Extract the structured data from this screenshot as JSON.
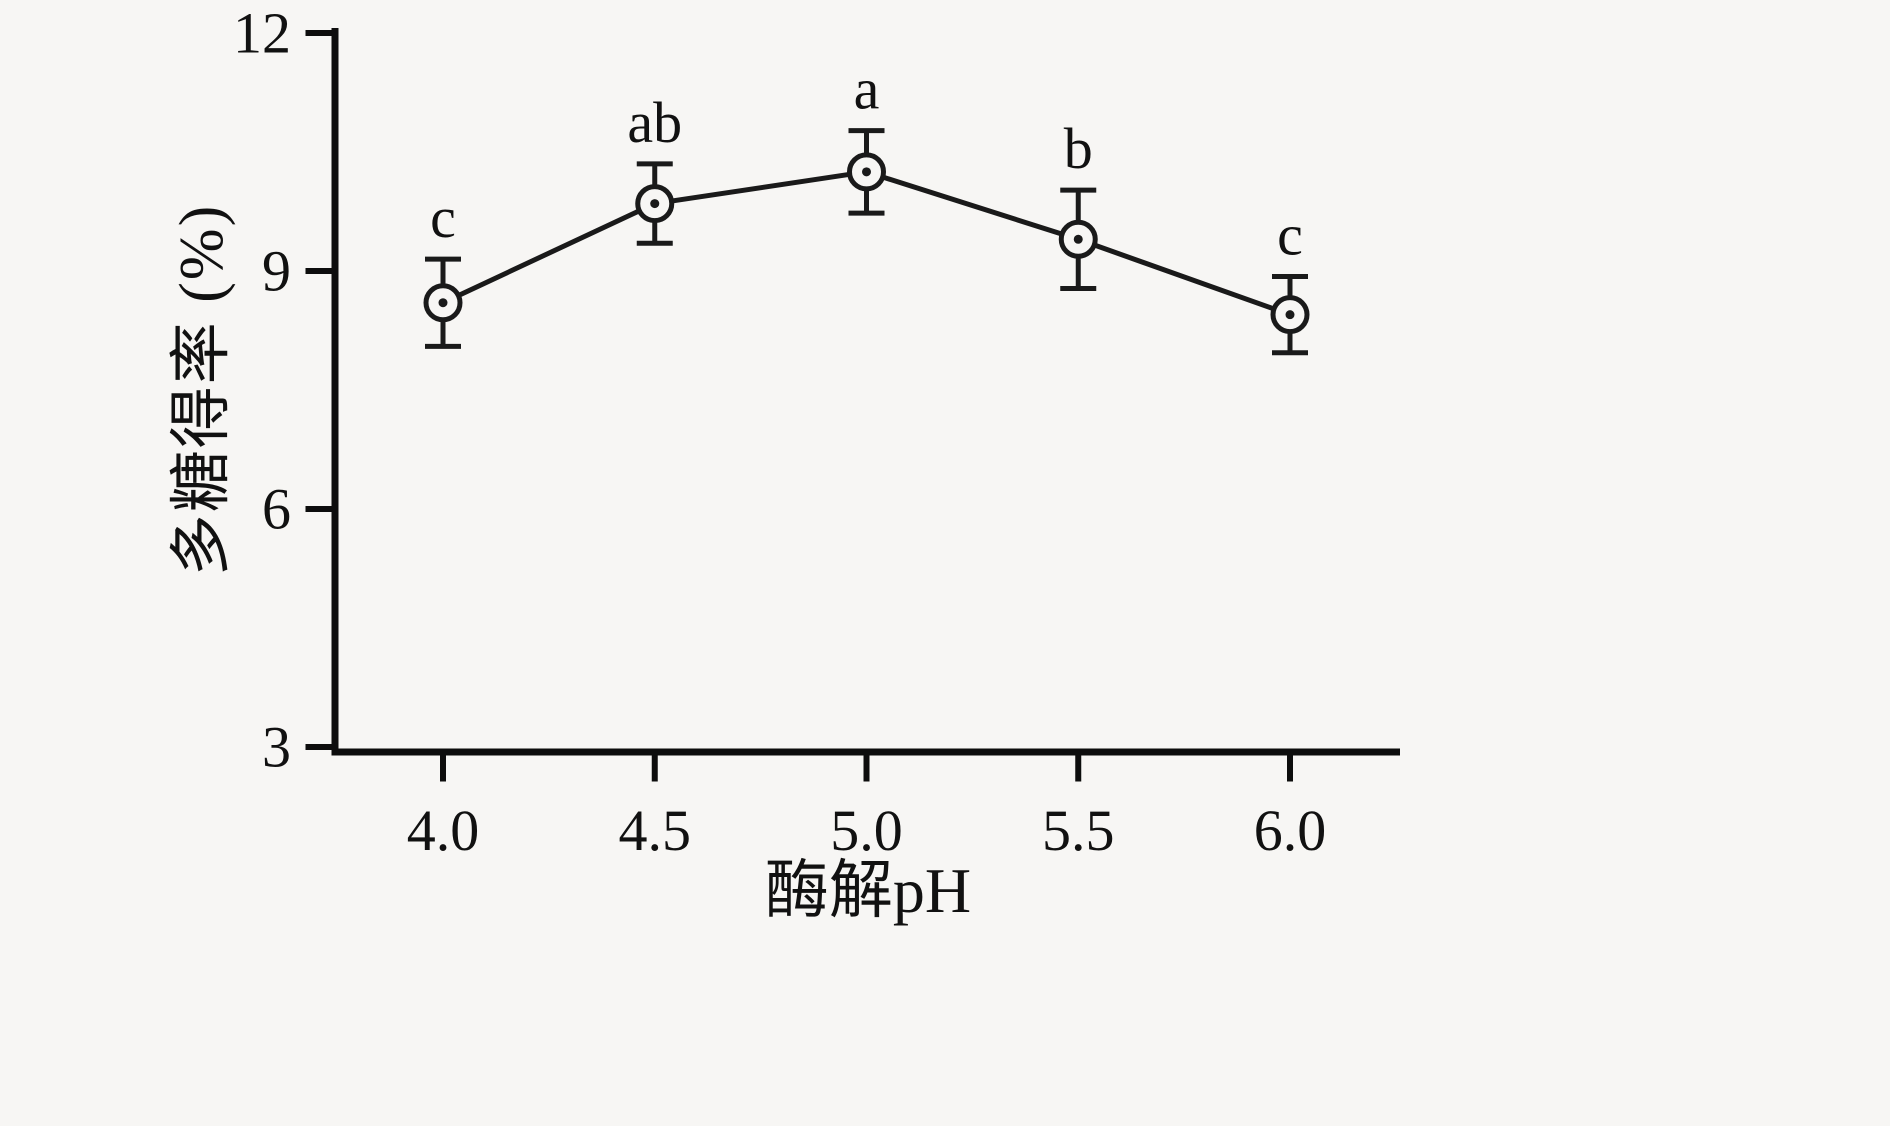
{
  "chart_data": {
    "type": "line",
    "title": "",
    "xlabel": "酶解pH",
    "ylabel": "多糖得率 (%)",
    "x": [
      4.0,
      4.5,
      5.0,
      5.5,
      6.0
    ],
    "x_tick_labels": [
      "4.0",
      "4.5",
      "5.0",
      "5.5",
      "6.0"
    ],
    "xlim": [
      3.75,
      6.25
    ],
    "ylim": [
      3,
      12
    ],
    "yticks": [
      3,
      6,
      9,
      12
    ],
    "ytick_labels": [
      "3",
      "6",
      "9",
      "12"
    ],
    "grid": false,
    "legend": false,
    "series": [
      {
        "name": "多糖得率",
        "values": [
          8.6,
          9.85,
          10.25,
          9.4,
          8.45
        ],
        "errors": [
          0.55,
          0.5,
          0.52,
          0.62,
          0.48
        ],
        "point_labels": [
          "c",
          "ab",
          "a",
          "b",
          "c"
        ],
        "marker": "open-circle-dot",
        "color": "#1a1a1a"
      }
    ],
    "colors": {
      "axis": "#0d0d0d",
      "text": "#111111",
      "background": "#f7f6f4"
    }
  }
}
